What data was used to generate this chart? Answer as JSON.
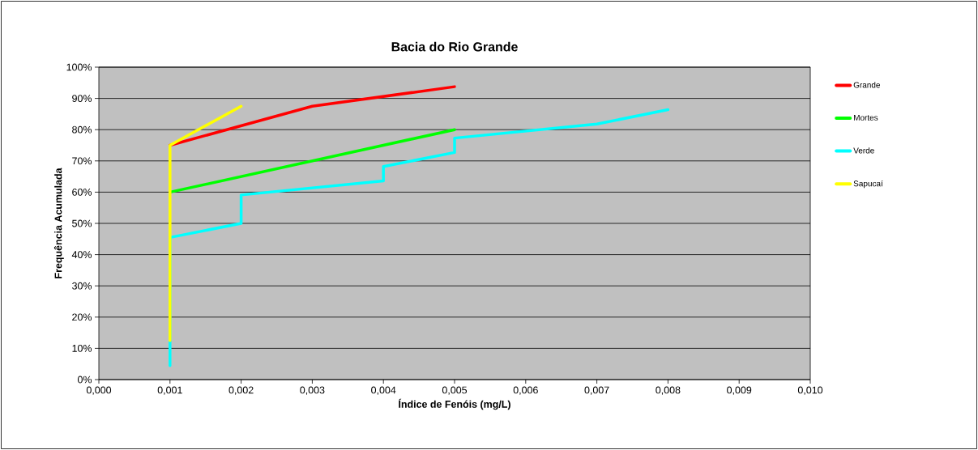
{
  "chart_data": {
    "type": "line",
    "title": "Bacia do Rio Grande",
    "xlabel": "Índice de Fenóis (mg/L)",
    "ylabel": "Frequência Acumulada",
    "xlim": [
      0,
      0.01
    ],
    "xticks": [
      {
        "value": 0,
        "label": "0,000"
      },
      {
        "value": 0.001,
        "label": "0,001"
      },
      {
        "value": 0.002,
        "label": "0,002"
      },
      {
        "value": 0.003,
        "label": "0,003"
      },
      {
        "value": 0.004,
        "label": "0,004"
      },
      {
        "value": 0.005,
        "label": "0,005"
      },
      {
        "value": 0.006,
        "label": "0,006"
      },
      {
        "value": 0.007,
        "label": "0,007"
      },
      {
        "value": 0.008,
        "label": "0,008"
      },
      {
        "value": 0.009,
        "label": "0,009"
      },
      {
        "value": 0.01,
        "label": "0,010"
      }
    ],
    "ylim": [
      0,
      100
    ],
    "yticks": [
      {
        "value": 0,
        "label": "0%"
      },
      {
        "value": 10,
        "label": "10%"
      },
      {
        "value": 20,
        "label": "20%"
      },
      {
        "value": 30,
        "label": "30%"
      },
      {
        "value": 40,
        "label": "40%"
      },
      {
        "value": 50,
        "label": "50%"
      },
      {
        "value": 60,
        "label": "60%"
      },
      {
        "value": 70,
        "label": "70%"
      },
      {
        "value": 80,
        "label": "80%"
      },
      {
        "value": 90,
        "label": "90%"
      },
      {
        "value": 100,
        "label": "100%"
      }
    ],
    "grid": "y",
    "legend": "right",
    "line_style": "solid",
    "series": [
      {
        "name": "Grande",
        "color": "#ff0000",
        "x": [
          0.001,
          0.003,
          0.005
        ],
        "values": [
          75,
          87.5,
          93.75
        ]
      },
      {
        "name": "Mortes",
        "color": "#00ff00",
        "x": [
          0.001,
          0.005
        ],
        "values": [
          60,
          80
        ]
      },
      {
        "name": "Verde",
        "color": "#00ffff",
        "x": [
          0.001,
          0.001,
          0.002,
          0.002,
          0.004,
          0.004,
          0.005,
          0.005,
          0.007,
          0.008
        ],
        "values": [
          4.5,
          45.5,
          50,
          59.1,
          63.6,
          68.2,
          72.7,
          77.3,
          81.8,
          86.4
        ]
      },
      {
        "name": "Sapucaí",
        "color": "#ffff00",
        "x": [
          0.001,
          0.001,
          0.002
        ],
        "values": [
          12.5,
          75,
          87.5
        ]
      }
    ]
  }
}
